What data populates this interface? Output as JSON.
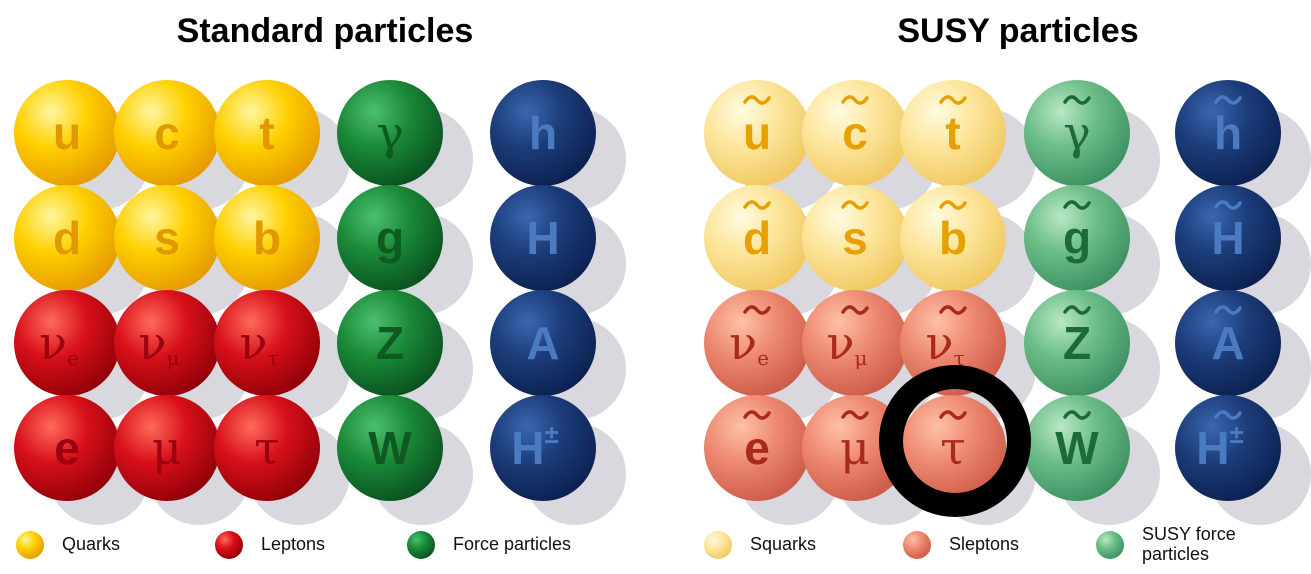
{
  "panels": [
    {
      "title": "Standard particles",
      "cells": [
        [
          {
            "symbol": "u"
          },
          {
            "symbol": "c"
          },
          {
            "symbol": "t"
          },
          {
            "symbol": "γ"
          },
          {
            "symbol": "h"
          }
        ],
        [
          {
            "symbol": "d"
          },
          {
            "symbol": "s"
          },
          {
            "symbol": "b"
          },
          {
            "symbol": "g"
          },
          {
            "symbol": "H"
          }
        ],
        [
          {
            "symbol": "ν",
            "sub": "e"
          },
          {
            "symbol": "ν",
            "sub": "μ"
          },
          {
            "symbol": "ν",
            "sub": "τ"
          },
          {
            "symbol": "Z"
          },
          {
            "symbol": "A"
          }
        ],
        [
          {
            "symbol": "e"
          },
          {
            "symbol": "μ"
          },
          {
            "symbol": "τ"
          },
          {
            "symbol": "W"
          },
          {
            "symbol": "H",
            "sup": "±"
          }
        ]
      ],
      "legend": [
        {
          "label": [
            "Quarks"
          ]
        },
        {
          "label": [
            "Leptons"
          ]
        },
        {
          "label": [
            "Force particles"
          ]
        }
      ]
    },
    {
      "title": "SUSY particles",
      "cells": [
        [
          {
            "symbol": "u"
          },
          {
            "symbol": "c"
          },
          {
            "symbol": "t"
          },
          {
            "symbol": "γ"
          },
          {
            "symbol": "h"
          }
        ],
        [
          {
            "symbol": "d"
          },
          {
            "symbol": "s"
          },
          {
            "symbol": "b"
          },
          {
            "symbol": "g"
          },
          {
            "symbol": "H"
          }
        ],
        [
          {
            "symbol": "ν",
            "sub": "e"
          },
          {
            "symbol": "ν",
            "sub": "μ"
          },
          {
            "symbol": "ν",
            "sub": "τ"
          },
          {
            "symbol": "Z"
          },
          {
            "symbol": "A"
          }
        ],
        [
          {
            "symbol": "e"
          },
          {
            "symbol": "μ"
          },
          {
            "symbol": "τ"
          },
          {
            "symbol": "W"
          },
          {
            "symbol": "H",
            "sup": "±"
          }
        ]
      ],
      "legend": [
        {
          "label": [
            "Squarks"
          ]
        },
        {
          "label": [
            "Sleptons"
          ]
        },
        {
          "label": [
            "SUSY force",
            "particles"
          ]
        }
      ]
    }
  ]
}
